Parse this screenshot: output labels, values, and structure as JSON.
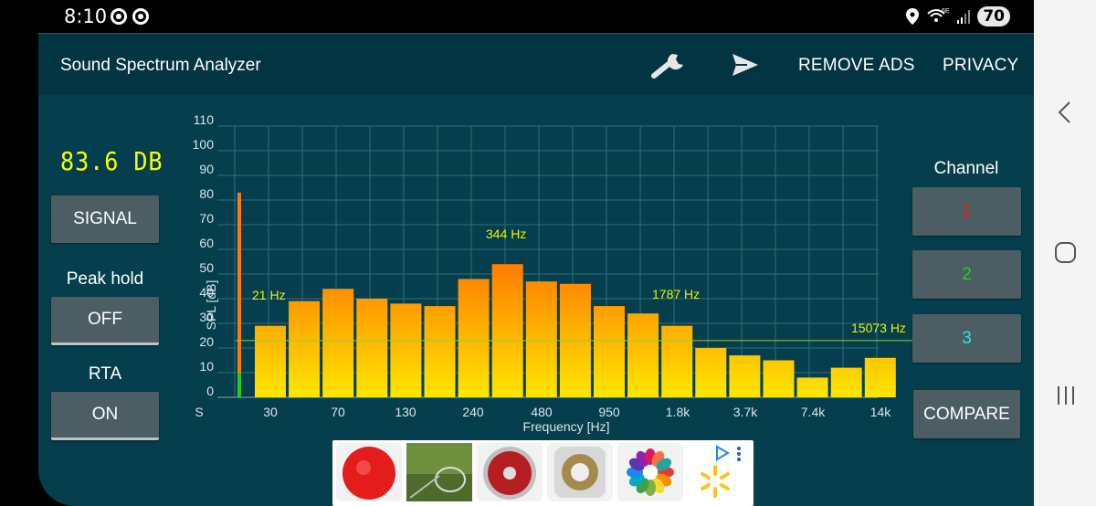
{
  "status": {
    "time": "8:10",
    "battery": "70",
    "network": "6E"
  },
  "toolbar": {
    "title": "Sound Spectrum Analyzer",
    "remove_ads": "REMOVE ADS",
    "privacy": "PRIVACY",
    "settings_icon": "wrench-icon",
    "share_icon": "send-icon"
  },
  "left_panel": {
    "level": "83.6 DB",
    "signal": "SIGNAL",
    "peak_hold_label": "Peak hold",
    "peak_hold_value": "OFF",
    "rta_label": "RTA",
    "rta_value": "ON"
  },
  "right_panel": {
    "channel_label": "Channel",
    "channels": [
      {
        "label": "1",
        "color": "#e0201e"
      },
      {
        "label": "2",
        "color": "#22d21a"
      },
      {
        "label": "3",
        "color": "#25e3e0"
      }
    ],
    "compare": "COMPARE"
  },
  "chart_data": {
    "type": "bar",
    "xlabel": "Frequency [Hz]",
    "ylabel": "SPL [dB]",
    "ylim": [
      0,
      110
    ],
    "y_ticks": [
      "0",
      "10",
      "20",
      "30",
      "40",
      "50",
      "60",
      "70",
      "80",
      "90",
      "100",
      "110"
    ],
    "x_ticks": [
      "S",
      "30",
      "70",
      "130",
      "240",
      "480",
      "950",
      "1.8k",
      "3.7k",
      "7.4k",
      "14k"
    ],
    "values": [
      29,
      39,
      44,
      40,
      38,
      37,
      48,
      54,
      47,
      46,
      37,
      34,
      29,
      20,
      17,
      15,
      8,
      12,
      16
    ],
    "level_meter": 83,
    "reference_line_db": 23,
    "annotations": [
      "21 Hz",
      "344 Hz",
      "1787 Hz",
      "15073 Hz"
    ],
    "colors": {
      "bar_top": "#ff7000",
      "bar_bottom": "#ffe600",
      "text": "#eef200",
      "grid": "#2f6c79",
      "axis_text": "#d8e6e9",
      "meter_green": "#22cc22",
      "ref_line": "#9acb39"
    }
  },
  "nav": {
    "back_icon": "back-icon",
    "home_icon": "home-icon",
    "recents_icon": "recents-icon"
  },
  "ads": [
    "red-ball-ad",
    "net-ad",
    "red-disc-ad",
    "gold-ring-ad",
    "color-wheel-ad",
    "walmart-logo-ad"
  ]
}
